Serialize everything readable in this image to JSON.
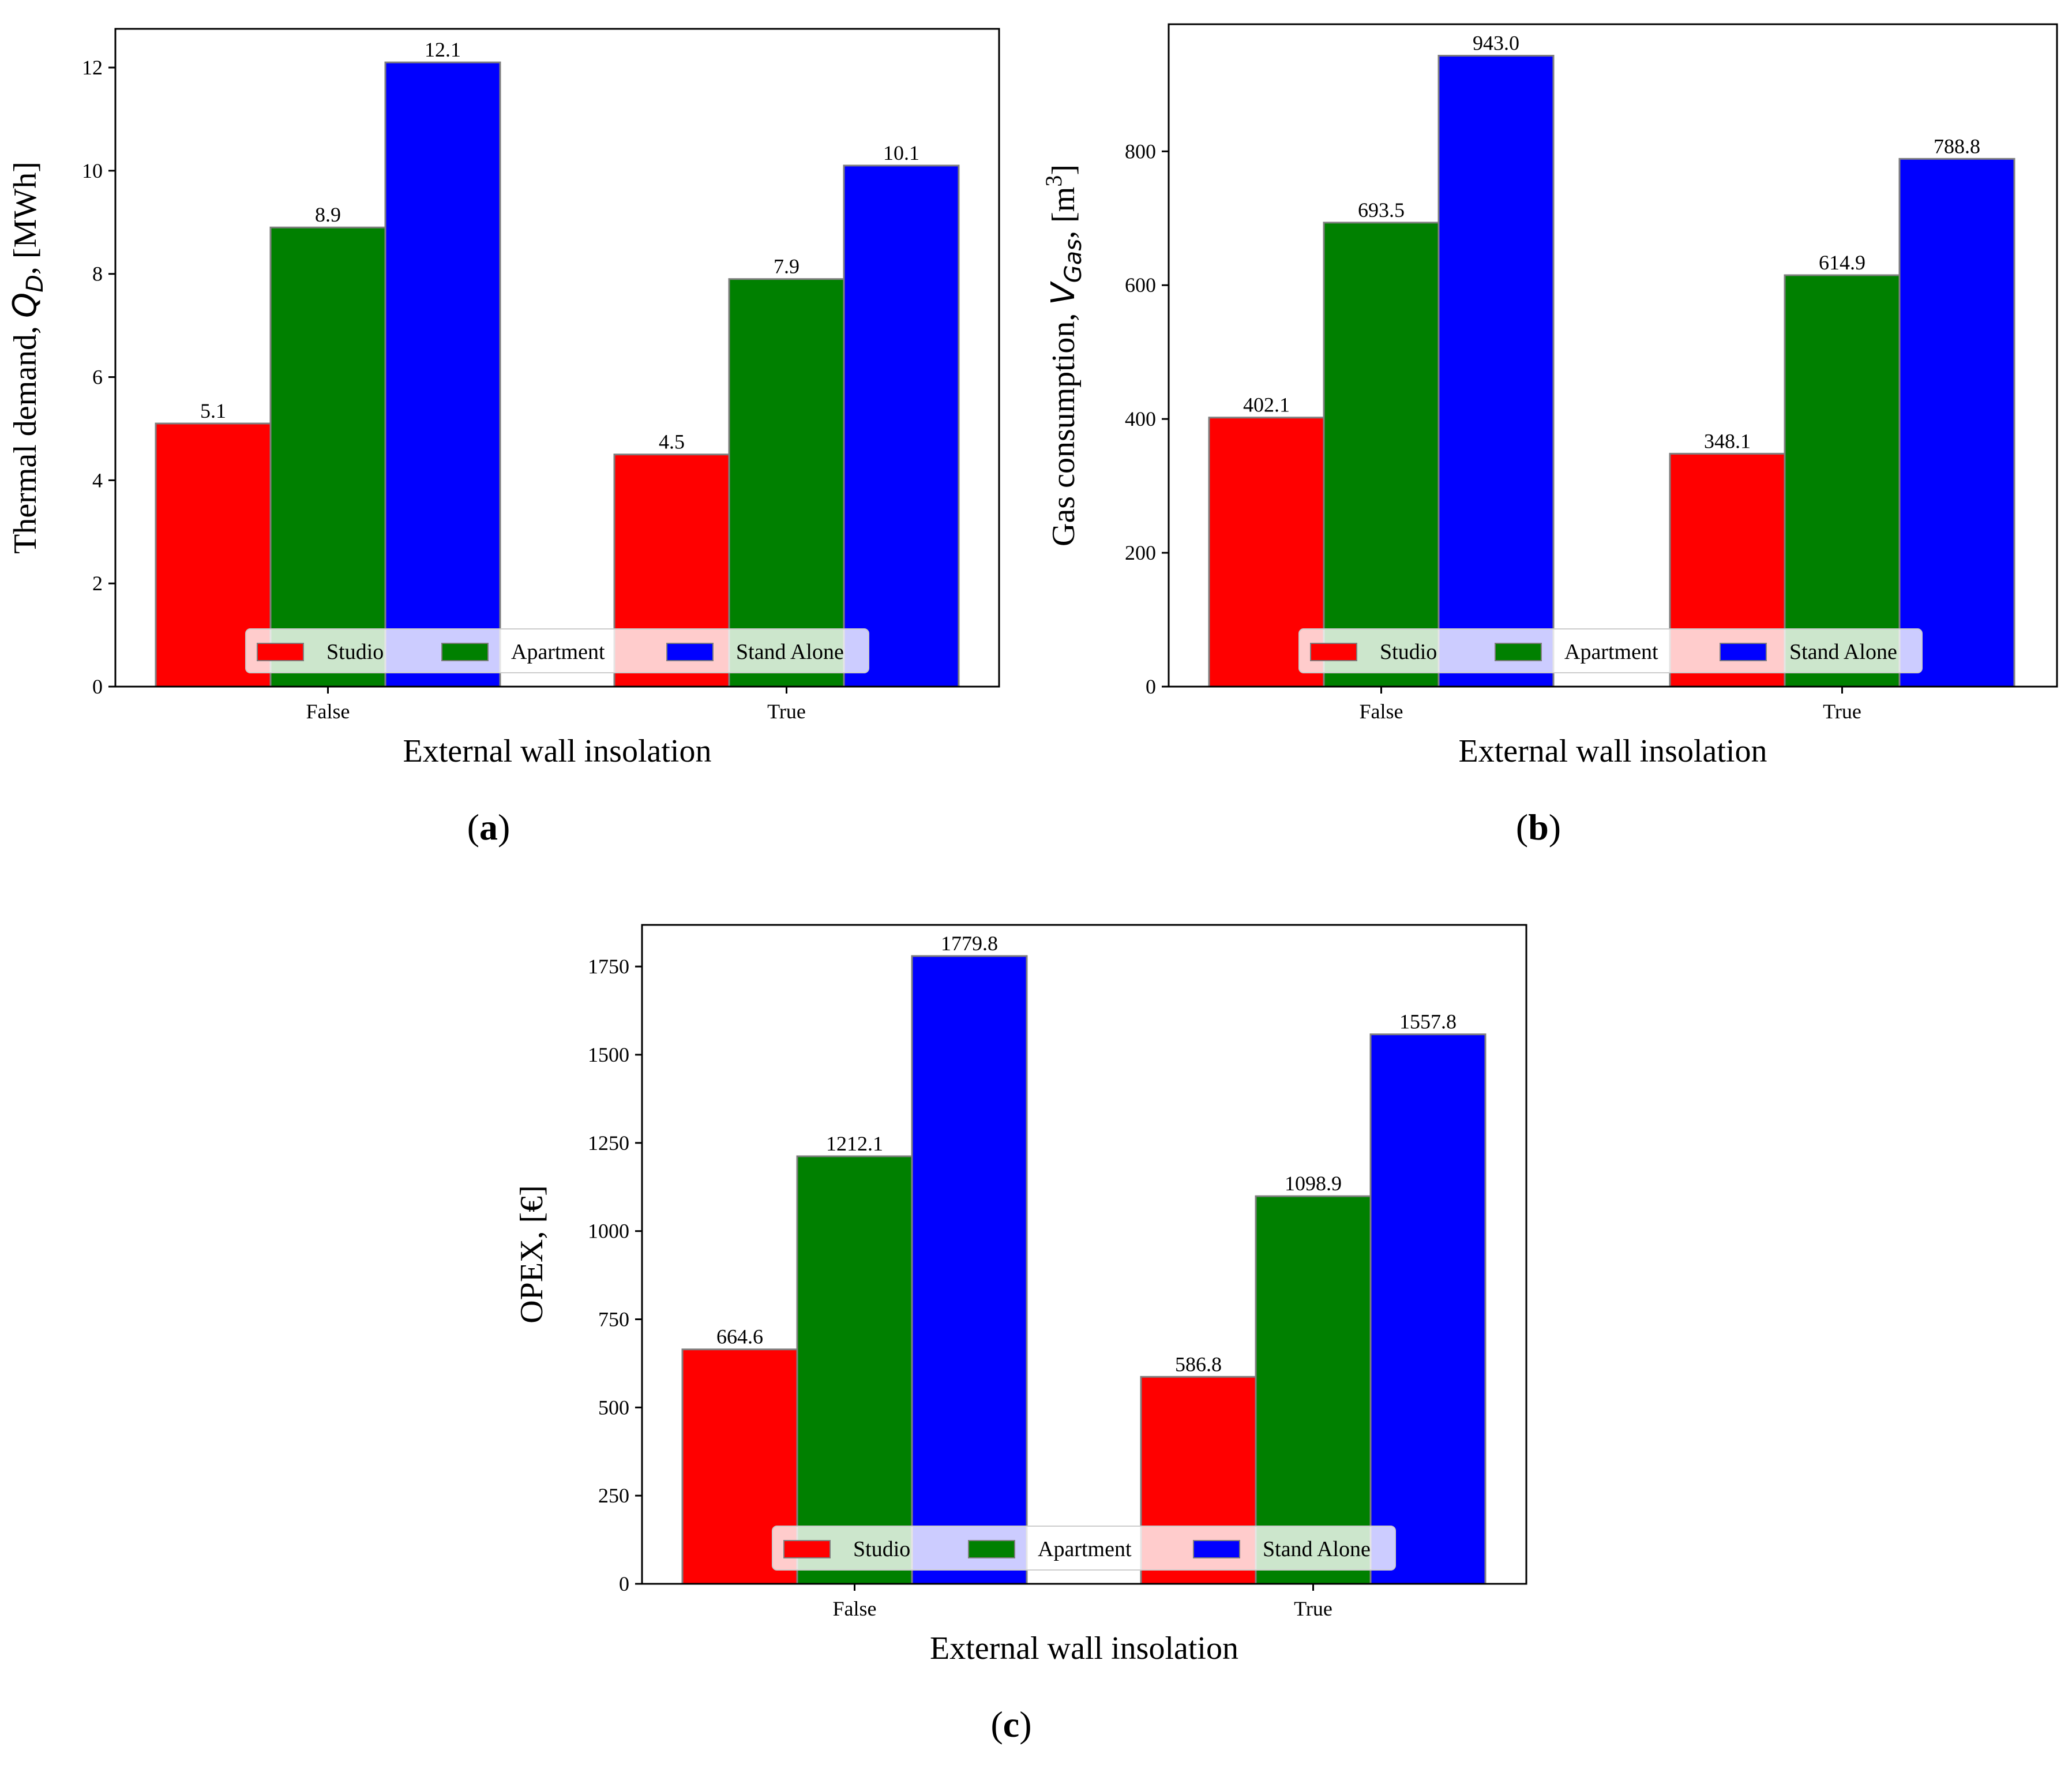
{
  "figure": {
    "captions": [
      {
        "open": "(",
        "letter": "a",
        "close": ")"
      },
      {
        "open": "(",
        "letter": "b",
        "close": ")"
      },
      {
        "open": "(",
        "letter": "c",
        "close": ")"
      }
    ]
  },
  "chart_data": [
    {
      "type": "bar",
      "title": "",
      "xlabel": "External wall insolation",
      "ylabel": "Thermal demand, Q_D, [MWh]",
      "ylabel_parts": {
        "prefix": "Thermal demand, ",
        "symbol": "Q",
        "sub": "D",
        "suffix": ", [MWh]"
      },
      "categories": [
        "False",
        "True"
      ],
      "ylim": [
        0,
        12.75
      ],
      "yticks": [
        0,
        2,
        4,
        6,
        8,
        10,
        12
      ],
      "grid": false,
      "legend": "lower-center",
      "series": [
        {
          "name": "Studio",
          "color": "#ff0000",
          "values": [
            5.1,
            4.5
          ]
        },
        {
          "name": "Apartment",
          "color": "#008000",
          "values": [
            8.9,
            7.9
          ]
        },
        {
          "name": "Stand Alone",
          "color": "#0000ff",
          "values": [
            12.1,
            10.1
          ]
        }
      ]
    },
    {
      "type": "bar",
      "title": "",
      "xlabel": "External wall insolation",
      "ylabel": "Gas consumption, V_Gas, [m3]",
      "ylabel_parts": {
        "prefix": "Gas consumption, ",
        "symbol": "V",
        "sub": "Gas",
        "suffix": ", [m",
        "sup": "3",
        "end": "]"
      },
      "categories": [
        "False",
        "True"
      ],
      "ylim": [
        0,
        990
      ],
      "yticks": [
        0,
        200,
        400,
        600,
        800
      ],
      "grid": false,
      "legend": "lower-center",
      "series": [
        {
          "name": "Studio",
          "color": "#ff0000",
          "values": [
            402.1,
            348.1
          ]
        },
        {
          "name": "Apartment",
          "color": "#008000",
          "values": [
            693.5,
            614.9
          ]
        },
        {
          "name": "Stand Alone",
          "color": "#0000ff",
          "values": [
            943.0,
            788.8
          ]
        }
      ]
    },
    {
      "type": "bar",
      "title": "",
      "xlabel": "External wall insolation",
      "ylabel": "OPEX, [€]",
      "ylabel_parts": {
        "prefix": "OPEX, [€]"
      },
      "categories": [
        "False",
        "True"
      ],
      "ylim": [
        0,
        1868
      ],
      "yticks": [
        0,
        250,
        500,
        750,
        1000,
        1250,
        1500,
        1750
      ],
      "grid": false,
      "legend": "lower-center",
      "series": [
        {
          "name": "Studio",
          "color": "#ff0000",
          "values": [
            664.6,
            586.8
          ]
        },
        {
          "name": "Apartment",
          "color": "#008000",
          "values": [
            1212.1,
            1098.9
          ]
        },
        {
          "name": "Stand Alone",
          "color": "#0000ff",
          "values": [
            1779.8,
            1557.8
          ]
        }
      ]
    }
  ]
}
